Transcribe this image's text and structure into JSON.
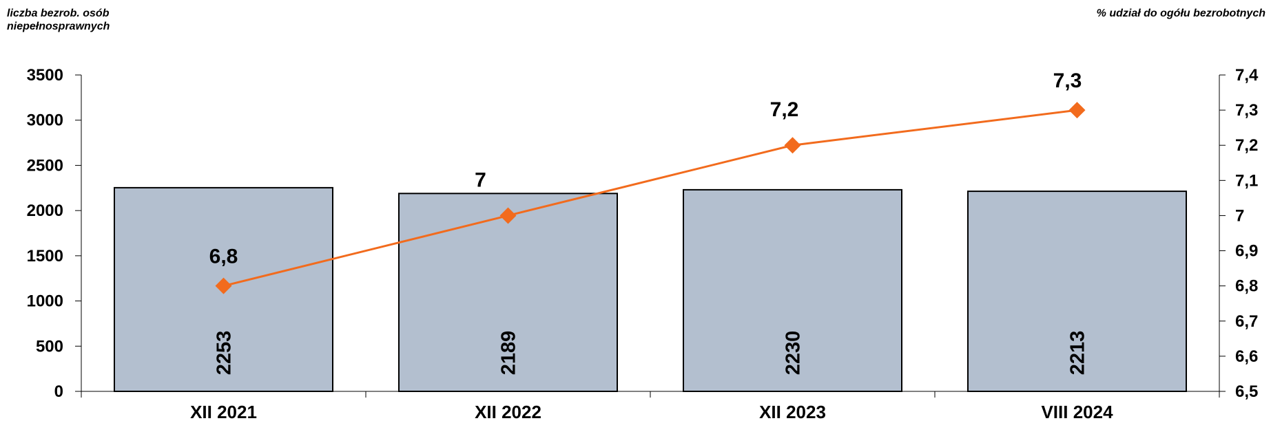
{
  "chart_data": {
    "type": "bar",
    "ylabel_left": "liczba bezrob. osób\nniepełnosprawnych",
    "ylabel_right": "% udział do ogółu bezrobotnych",
    "categories": [
      "XII 2021",
      "XII 2022",
      "XII 2023",
      "VIII 2024"
    ],
    "y_left_lim": [
      0,
      3500
    ],
    "y_left_ticks": [
      "0",
      "500",
      "1000",
      "1500",
      "2000",
      "2500",
      "3000",
      "3500"
    ],
    "y_right_lim": [
      6.5,
      7.4
    ],
    "y_right_ticks": [
      "6,5",
      "6,6",
      "6,7",
      "6,8",
      "6,9",
      "7",
      "7,1",
      "7,2",
      "7,3",
      "7,4"
    ],
    "series": [
      {
        "type": "bar",
        "axis": "left",
        "values": [
          2253,
          2189,
          2230,
          2213
        ],
        "labels": [
          "2253",
          "2189",
          "2230",
          "2213"
        ],
        "color": "#b3bfcf"
      },
      {
        "type": "line",
        "axis": "right",
        "values": [
          6.8,
          7.0,
          7.2,
          7.3
        ],
        "labels": [
          "6,8",
          "7",
          "7,2",
          "7,3"
        ],
        "color": "#f26b1d",
        "marker": "diamond"
      }
    ],
    "grid": false,
    "legend": "none"
  }
}
